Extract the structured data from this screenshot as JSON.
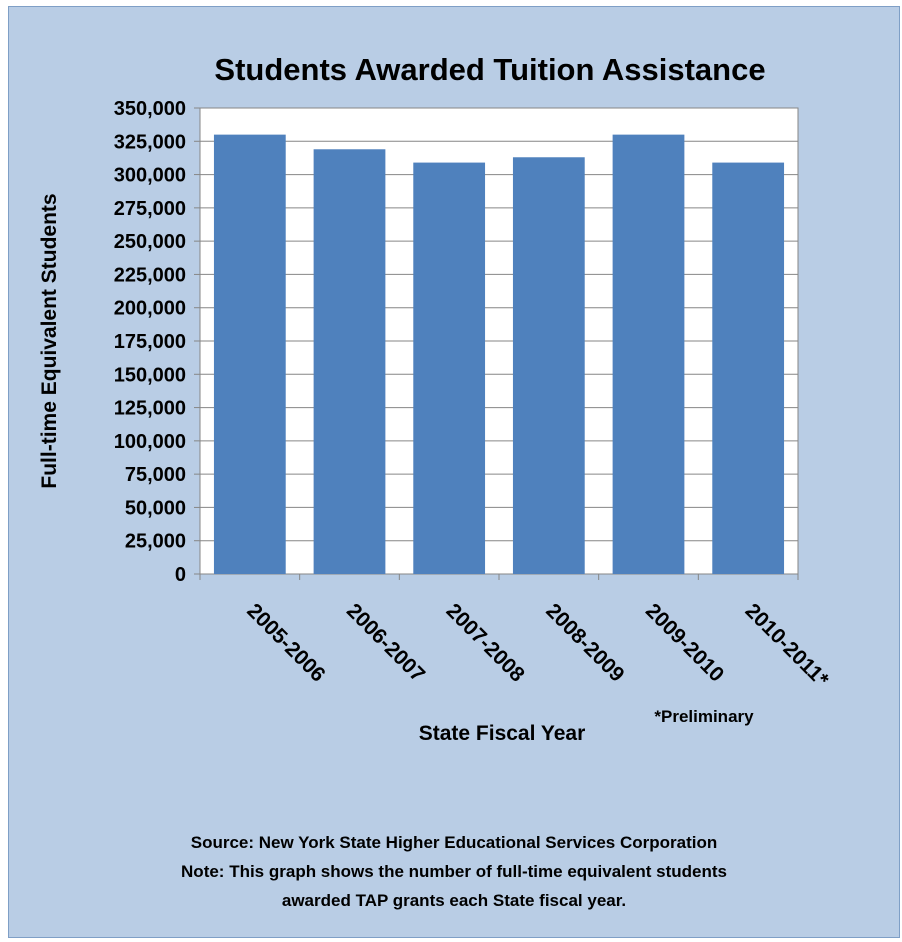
{
  "chart_data": {
    "type": "bar",
    "title": "Students Awarded Tuition Assistance",
    "xlabel": "State Fiscal Year",
    "ylabel": "Full-time Equivalent Students",
    "categories": [
      "2005-2006",
      "2006-2007",
      "2007-2008",
      "2008-2009",
      "2009-2010",
      "2010-2011*"
    ],
    "values": [
      330000,
      319000,
      309000,
      313000,
      330000,
      309000
    ],
    "ylim": [
      0,
      350000
    ],
    "yticks": [
      "0",
      "25,000",
      "50,000",
      "75,000",
      "100,000",
      "125,000",
      "150,000",
      "175,000",
      "200,000",
      "225,000",
      "250,000",
      "275,000",
      "300,000",
      "325,000",
      "350,000"
    ],
    "grid": true,
    "legend": "none",
    "bar_color": "#4f81bd",
    "plot_background": "#ffffff",
    "panel_background": "#b9cde5",
    "annotation": "*Preliminary"
  },
  "footer": {
    "source": "Source: New York State Higher Educational Services Corporation",
    "note_line1": "Note: This graph shows the number of full-time equivalent students",
    "note_line2": "awarded TAP grants each State fiscal year."
  }
}
